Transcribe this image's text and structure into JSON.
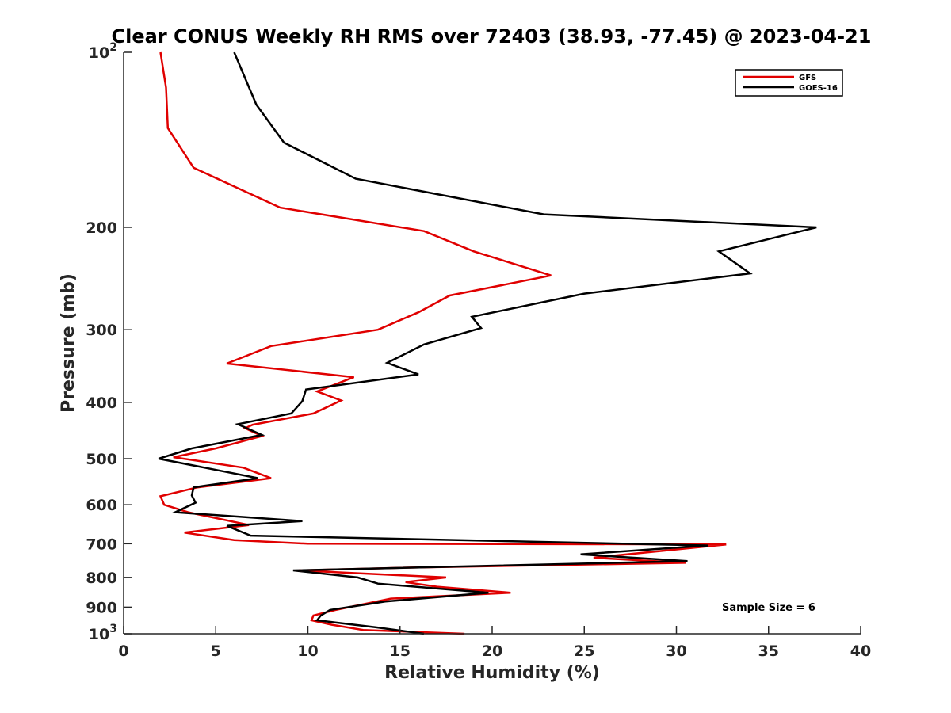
{
  "chart_data": {
    "type": "line",
    "title": "Clear CONUS Weekly RH RMS over 72403 (38.93, -77.45) @ 2023-04-21",
    "xlabel": "Relative Humidity (%)",
    "ylabel": "Pressure (mb)",
    "xlim": [
      0,
      40
    ],
    "ylim": [
      100,
      1000
    ],
    "y_scale": "log",
    "y_reversed": true,
    "x_ticks": [
      0,
      5,
      10,
      15,
      20,
      25,
      30,
      35,
      40
    ],
    "x_tick_labels": [
      "0",
      "5",
      "10",
      "15",
      "20",
      "25",
      "30",
      "35",
      "40"
    ],
    "y_ticks": [
      {
        "value": 100,
        "label": "10",
        "sup": "2"
      },
      {
        "value": 200,
        "label": "200",
        "sup": ""
      },
      {
        "value": 300,
        "label": "300",
        "sup": ""
      },
      {
        "value": 400,
        "label": "400",
        "sup": ""
      },
      {
        "value": 500,
        "label": "500",
        "sup": ""
      },
      {
        "value": 600,
        "label": "600",
        "sup": ""
      },
      {
        "value": 700,
        "label": "700",
        "sup": ""
      },
      {
        "value": 800,
        "label": "800",
        "sup": ""
      },
      {
        "value": 900,
        "label": "900",
        "sup": ""
      },
      {
        "value": 1000,
        "label": "10",
        "sup": "3"
      }
    ],
    "grid": false,
    "legend_position": "top-right",
    "annotation": "Sample Size = 6",
    "series": [
      {
        "name": "GFS",
        "color": "#e00000",
        "points": [
          [
            2.0,
            100
          ],
          [
            2.3,
            115
          ],
          [
            2.4,
            135
          ],
          [
            3.8,
            158
          ],
          [
            8.5,
            185
          ],
          [
            16.3,
            203
          ],
          [
            19.0,
            220
          ],
          [
            23.2,
            242
          ],
          [
            17.7,
            262
          ],
          [
            16.0,
            280
          ],
          [
            13.8,
            300
          ],
          [
            8.0,
            320
          ],
          [
            5.6,
            343
          ],
          [
            12.5,
            362
          ],
          [
            10.5,
            383
          ],
          [
            11.8,
            397
          ],
          [
            10.3,
            418
          ],
          [
            7.0,
            437
          ],
          [
            6.6,
            443
          ],
          [
            7.5,
            457
          ],
          [
            5.0,
            480
          ],
          [
            2.7,
            497
          ],
          [
            6.5,
            518
          ],
          [
            8.0,
            540
          ],
          [
            4.0,
            560
          ],
          [
            2.0,
            580
          ],
          [
            2.2,
            600
          ],
          [
            3.5,
            618
          ],
          [
            6.8,
            650
          ],
          [
            3.3,
            670
          ],
          [
            6.0,
            690
          ],
          [
            10.0,
            700
          ],
          [
            32.7,
            702
          ],
          [
            25.5,
            740
          ],
          [
            30.5,
            755
          ],
          [
            15.0,
            770
          ],
          [
            9.5,
            778
          ],
          [
            17.5,
            800
          ],
          [
            15.3,
            815
          ],
          [
            17.0,
            830
          ],
          [
            21.0,
            850
          ],
          [
            14.5,
            870
          ],
          [
            11.5,
            910
          ],
          [
            10.3,
            930
          ],
          [
            10.2,
            948
          ],
          [
            11.3,
            965
          ],
          [
            13.0,
            985
          ],
          [
            18.5,
            1000
          ]
        ]
      },
      {
        "name": "GOES-16",
        "color": "#000000",
        "points": [
          [
            6.0,
            100
          ],
          [
            7.2,
            123
          ],
          [
            8.7,
            143
          ],
          [
            12.6,
            165
          ],
          [
            22.8,
            190
          ],
          [
            37.6,
            200
          ],
          [
            32.3,
            220
          ],
          [
            34.0,
            240
          ],
          [
            25.0,
            260
          ],
          [
            18.9,
            285
          ],
          [
            19.4,
            298
          ],
          [
            16.3,
            318
          ],
          [
            14.3,
            342
          ],
          [
            16.0,
            358
          ],
          [
            9.9,
            380
          ],
          [
            9.7,
            398
          ],
          [
            9.1,
            418
          ],
          [
            6.2,
            436
          ],
          [
            7.5,
            455
          ],
          [
            3.7,
            480
          ],
          [
            1.9,
            500
          ],
          [
            5.6,
            527
          ],
          [
            7.3,
            540
          ],
          [
            3.8,
            560
          ],
          [
            3.7,
            578
          ],
          [
            3.9,
            595
          ],
          [
            2.8,
            618
          ],
          [
            9.7,
            640
          ],
          [
            5.6,
            652
          ],
          [
            6.9,
            678
          ],
          [
            31.7,
            705
          ],
          [
            24.8,
            730
          ],
          [
            30.6,
            750
          ],
          [
            9.2,
            778
          ],
          [
            12.7,
            800
          ],
          [
            13.8,
            820
          ],
          [
            19.8,
            850
          ],
          [
            14.2,
            880
          ],
          [
            11.2,
            910
          ],
          [
            10.7,
            930
          ],
          [
            10.5,
            948
          ],
          [
            13.7,
            975
          ],
          [
            16.3,
            1000
          ]
        ]
      }
    ]
  }
}
